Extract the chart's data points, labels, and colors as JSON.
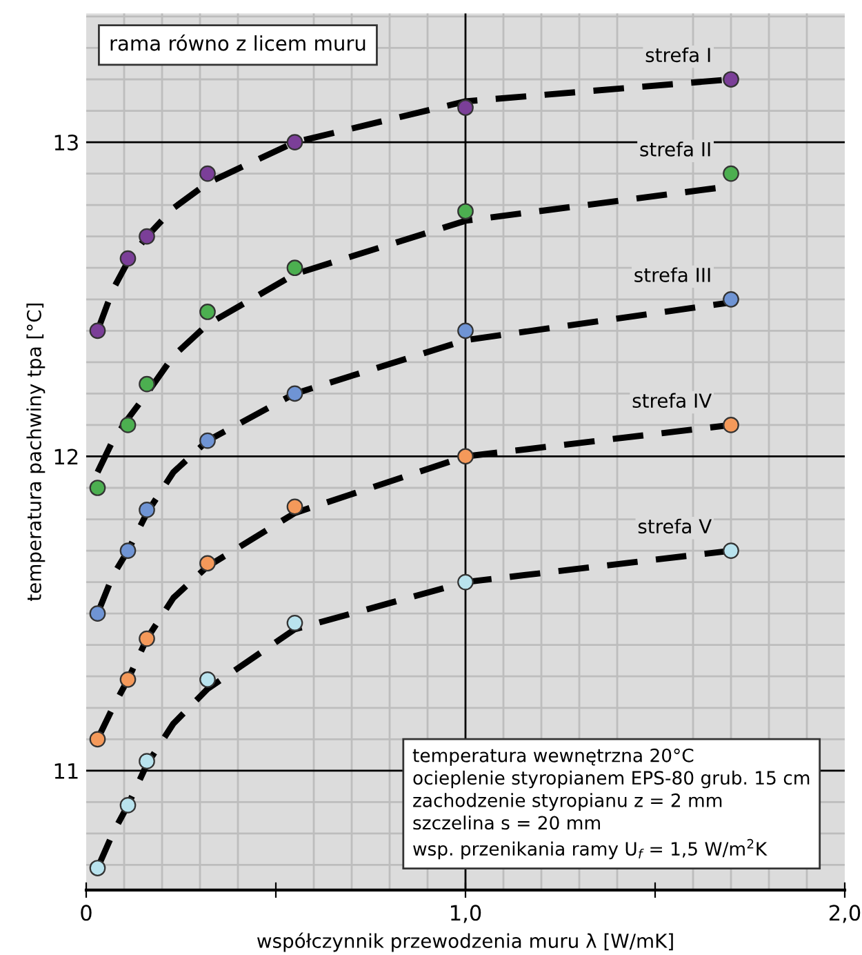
{
  "chart_data": {
    "type": "scatter",
    "xlabel": "współczynnik przewodzenia muru λ [W/mK]",
    "ylabel": "temperatura pachwiny tpa [°C]",
    "xlim": [
      0,
      2.0
    ],
    "ylim": [
      10.62,
      13.41
    ],
    "xticks": [
      0,
      {
        "value": 0.5,
        "label": null
      },
      {
        "value": 1.0,
        "label": "1,0"
      },
      {
        "value": 1.5,
        "label": null
      },
      {
        "value": 2.0,
        "label": "2,0"
      }
    ],
    "yticks": [
      11,
      12,
      13
    ],
    "grid": true,
    "legend": false,
    "ref_lines": [
      {
        "axis": "y",
        "value": 11,
        "color": "#000000"
      },
      {
        "axis": "y",
        "value": 12,
        "color": "#000000"
      },
      {
        "axis": "y",
        "value": 13,
        "color": "#000000"
      },
      {
        "axis": "x",
        "value": 1.0,
        "color": "#000000"
      }
    ],
    "annotations": [
      "rama równo z licem muru",
      "temperatura wewnętrzna 20°C\nocieplenie styropianem EPS-80 grub. 15 cm\nzachodzenie styropianu z = 2 mm\nszczelina s = 20 mm\nwsp. przenikania ramy U$_{f}$ = 1,5 W/m$^{2}$K"
    ],
    "series": [
      {
        "type": "line",
        "line_style": "dashed",
        "marker": "none",
        "color": "#000000",
        "x": [
          0.03,
          0.07,
          0.11,
          0.16,
          0.23,
          0.32,
          0.55,
          1.0,
          1.7
        ],
        "values": [
          12.4,
          12.53,
          12.62,
          12.7,
          12.79,
          12.87,
          13.0,
          13.13,
          13.2
        ]
      },
      {
        "type": "line",
        "line_style": "dashed",
        "marker": "none",
        "color": "#000000",
        "x": [
          0.03,
          0.07,
          0.11,
          0.16,
          0.23,
          0.32,
          0.55,
          1.0,
          1.7
        ],
        "values": [
          11.95,
          12.05,
          12.12,
          12.2,
          12.32,
          12.42,
          12.58,
          12.75,
          12.86
        ]
      },
      {
        "type": "line",
        "line_style": "dashed",
        "marker": "none",
        "color": "#000000",
        "x": [
          0.03,
          0.07,
          0.11,
          0.16,
          0.23,
          0.32,
          0.55,
          1.0,
          1.7
        ],
        "values": [
          11.5,
          11.62,
          11.7,
          11.82,
          11.95,
          12.05,
          12.2,
          12.37,
          12.49
        ]
      },
      {
        "type": "line",
        "line_style": "dashed",
        "marker": "none",
        "color": "#000000",
        "x": [
          0.03,
          0.07,
          0.11,
          0.16,
          0.23,
          0.32,
          0.55,
          1.0,
          1.7
        ],
        "values": [
          11.1,
          11.2,
          11.29,
          11.42,
          11.55,
          11.65,
          11.82,
          12.0,
          12.1
        ]
      },
      {
        "type": "line",
        "line_style": "dashed",
        "marker": "none",
        "color": "#000000",
        "x": [
          0.03,
          0.07,
          0.11,
          0.16,
          0.23,
          0.32,
          0.55,
          1.0,
          1.7
        ],
        "values": [
          10.69,
          10.8,
          10.89,
          11.02,
          11.15,
          11.26,
          11.45,
          11.6,
          11.7
        ]
      },
      {
        "name": "strefa I",
        "marker": "circle",
        "color": "#7b3f98",
        "x": [
          0.03,
          0.11,
          0.16,
          0.32,
          0.55,
          1.0,
          1.7
        ],
        "values": [
          12.4,
          12.63,
          12.7,
          12.9,
          13.0,
          13.11,
          13.2
        ]
      },
      {
        "name": "strefa II",
        "marker": "circle",
        "color": "#4caf50",
        "x": [
          0.03,
          0.11,
          0.16,
          0.32,
          0.55,
          1.0,
          1.7
        ],
        "values": [
          11.9,
          12.1,
          12.23,
          12.46,
          12.6,
          12.78,
          12.9
        ]
      },
      {
        "name": "strefa III",
        "marker": "circle",
        "color": "#6f94d4",
        "x": [
          0.03,
          0.11,
          0.16,
          0.32,
          0.55,
          1.0,
          1.7
        ],
        "values": [
          11.5,
          11.7,
          11.83,
          12.05,
          12.2,
          12.4,
          12.5
        ]
      },
      {
        "name": "strefa IV",
        "marker": "circle",
        "color": "#f4995a",
        "x": [
          0.03,
          0.11,
          0.16,
          0.32,
          0.55,
          1.0,
          1.7
        ],
        "values": [
          11.1,
          11.29,
          11.42,
          11.66,
          11.84,
          12.0,
          12.1
        ]
      },
      {
        "name": "strefa V",
        "marker": "circle",
        "color": "#b9e3ee",
        "x": [
          0.03,
          0.11,
          0.16,
          0.32,
          0.55,
          1.0,
          1.7
        ],
        "values": [
          10.69,
          10.89,
          11.03,
          11.29,
          11.47,
          11.6,
          11.7
        ]
      }
    ]
  }
}
